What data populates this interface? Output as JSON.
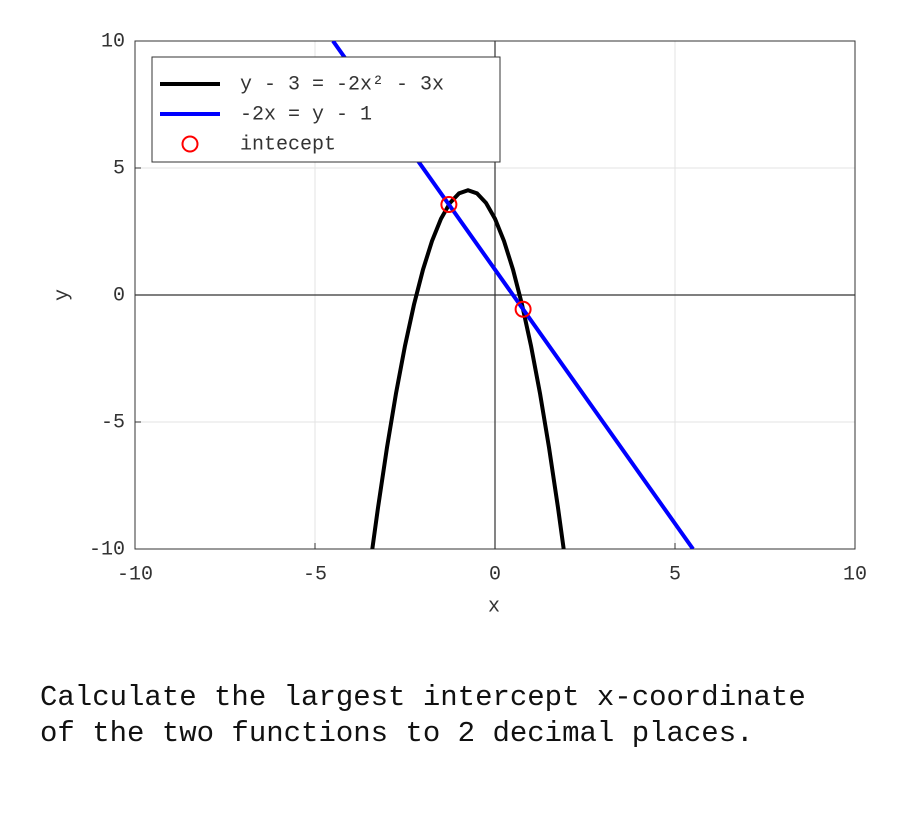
{
  "chart_data": {
    "type": "line",
    "xlabel": "x",
    "ylabel": "y",
    "xlim": [
      -10,
      10
    ],
    "ylim": [
      -10,
      10
    ],
    "xticks": [
      -10,
      -5,
      0,
      5,
      10
    ],
    "yticks": [
      -10,
      -5,
      0,
      5,
      10
    ],
    "grid": true,
    "legend": "upper left",
    "series": [
      {
        "name": "y - 3 = -2x² - 3x",
        "color": "#000000",
        "style": "line",
        "x": [
          -3.408,
          -3.25,
          -3,
          -2.75,
          -2.5,
          -2.25,
          -2,
          -1.75,
          -1.5,
          -1.25,
          -1,
          -0.75,
          -0.5,
          -0.25,
          0,
          0.25,
          0.5,
          0.75,
          1,
          1.25,
          1.5,
          1.75,
          1.908
        ],
        "values": [
          -10,
          -8.375,
          -6,
          -3.875,
          -2,
          -0.375,
          1,
          2.125,
          3,
          3.625,
          4,
          4.125,
          4,
          3.625,
          3,
          2.125,
          1,
          -0.375,
          -2,
          -3.875,
          -6,
          -8.375,
          -10
        ]
      },
      {
        "name": "-2x = y - 1",
        "color": "#0000ff",
        "style": "line",
        "x": [
          -4.5,
          5.5
        ],
        "values": [
          10,
          -10
        ]
      },
      {
        "name": "intecept",
        "color": "#ff0000",
        "style": "marker",
        "x": [
          -1.2808,
          0.7808
        ],
        "values": [
          3.5616,
          -0.5616
        ]
      }
    ]
  },
  "question": "Calculate the largest intercept x-coordinate of the two functions to 2 decimal places."
}
